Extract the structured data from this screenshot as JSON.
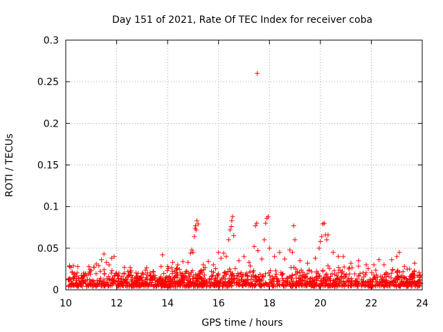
{
  "chart_data": {
    "type": "scatter",
    "title": "Day 151 of 2021, Rate Of TEC Index for receiver coba",
    "xlabel": "GPS time / hours",
    "ylabel": "ROTI / TECUs",
    "xlim": [
      10,
      24
    ],
    "ylim": [
      0,
      0.3
    ],
    "x_ticks": [
      "10",
      "12",
      "14",
      "16",
      "18",
      "20",
      "22",
      "24"
    ],
    "y_ticks": [
      "0",
      "0.05",
      "0.1",
      "0.15",
      "0.2",
      "0.25",
      "0.3"
    ],
    "grid": true,
    "marker": "plus",
    "color": "#ff0000",
    "series": [
      {
        "name": "ROTI",
        "points": [
          [
            10.1,
            0.012
          ],
          [
            10.15,
            0.029
          ],
          [
            10.2,
            0.027
          ],
          [
            10.25,
            0.021
          ],
          [
            10.3,
            0.029
          ],
          [
            10.35,
            0.016
          ],
          [
            10.5,
            0.014
          ],
          [
            10.7,
            0.02
          ],
          [
            10.9,
            0.019
          ],
          [
            11.0,
            0.023
          ],
          [
            11.1,
            0.027
          ],
          [
            11.2,
            0.031
          ],
          [
            11.3,
            0.029
          ],
          [
            11.4,
            0.036
          ],
          [
            11.5,
            0.043
          ],
          [
            11.6,
            0.033
          ],
          [
            11.7,
            0.03
          ],
          [
            11.8,
            0.038
          ],
          [
            11.9,
            0.04
          ],
          [
            12.0,
            0.02
          ],
          [
            12.2,
            0.016
          ],
          [
            12.5,
            0.018
          ],
          [
            12.8,
            0.015
          ],
          [
            13.0,
            0.02
          ],
          [
            13.2,
            0.018
          ],
          [
            13.5,
            0.017
          ],
          [
            13.8,
            0.042
          ],
          [
            14.0,
            0.028
          ],
          [
            14.2,
            0.033
          ],
          [
            14.4,
            0.03
          ],
          [
            14.6,
            0.034
          ],
          [
            14.8,
            0.033
          ],
          [
            14.9,
            0.044
          ],
          [
            14.95,
            0.048
          ],
          [
            15.0,
            0.045
          ],
          [
            15.05,
            0.064
          ],
          [
            15.08,
            0.074
          ],
          [
            15.1,
            0.077
          ],
          [
            15.12,
            0.072
          ],
          [
            15.15,
            0.083
          ],
          [
            15.2,
            0.079
          ],
          [
            15.4,
            0.03
          ],
          [
            15.6,
            0.034
          ],
          [
            15.8,
            0.03
          ],
          [
            16.0,
            0.045
          ],
          [
            16.1,
            0.038
          ],
          [
            16.2,
            0.044
          ],
          [
            16.3,
            0.04
          ],
          [
            16.4,
            0.06
          ],
          [
            16.45,
            0.072
          ],
          [
            16.5,
            0.076
          ],
          [
            16.52,
            0.083
          ],
          [
            16.55,
            0.088
          ],
          [
            16.6,
            0.065
          ],
          [
            16.8,
            0.035
          ],
          [
            17.0,
            0.04
          ],
          [
            17.2,
            0.033
          ],
          [
            17.4,
            0.052
          ],
          [
            17.45,
            0.077
          ],
          [
            17.5,
            0.08
          ],
          [
            17.52,
            0.26
          ],
          [
            17.55,
            0.047
          ],
          [
            17.7,
            0.037
          ],
          [
            17.8,
            0.06
          ],
          [
            17.85,
            0.08
          ],
          [
            17.9,
            0.086
          ],
          [
            17.95,
            0.088
          ],
          [
            18.0,
            0.05
          ],
          [
            18.2,
            0.04
          ],
          [
            18.4,
            0.045
          ],
          [
            18.6,
            0.037
          ],
          [
            18.8,
            0.048
          ],
          [
            18.9,
            0.045
          ],
          [
            18.95,
            0.077
          ],
          [
            19.0,
            0.06
          ],
          [
            19.2,
            0.035
          ],
          [
            19.5,
            0.032
          ],
          [
            19.8,
            0.038
          ],
          [
            19.95,
            0.05
          ],
          [
            20.0,
            0.058
          ],
          [
            20.05,
            0.064
          ],
          [
            20.1,
            0.079
          ],
          [
            20.15,
            0.08
          ],
          [
            20.2,
            0.066
          ],
          [
            20.25,
            0.06
          ],
          [
            20.3,
            0.066
          ],
          [
            20.5,
            0.045
          ],
          [
            20.7,
            0.04
          ],
          [
            20.9,
            0.04
          ],
          [
            21.2,
            0.032
          ],
          [
            21.5,
            0.035
          ],
          [
            21.8,
            0.03
          ],
          [
            22.1,
            0.03
          ],
          [
            22.3,
            0.036
          ],
          [
            22.5,
            0.03
          ],
          [
            22.8,
            0.036
          ],
          [
            23.0,
            0.04
          ],
          [
            23.1,
            0.045
          ],
          [
            23.3,
            0.028
          ],
          [
            23.5,
            0.025
          ],
          [
            23.7,
            0.032
          ],
          [
            23.9,
            0.015
          ]
        ],
        "dense_band": {
          "x_range": [
            10.1,
            23.95
          ],
          "y_min": 0.004,
          "y_max": 0.03,
          "approx_count": 1400
        }
      }
    ]
  }
}
